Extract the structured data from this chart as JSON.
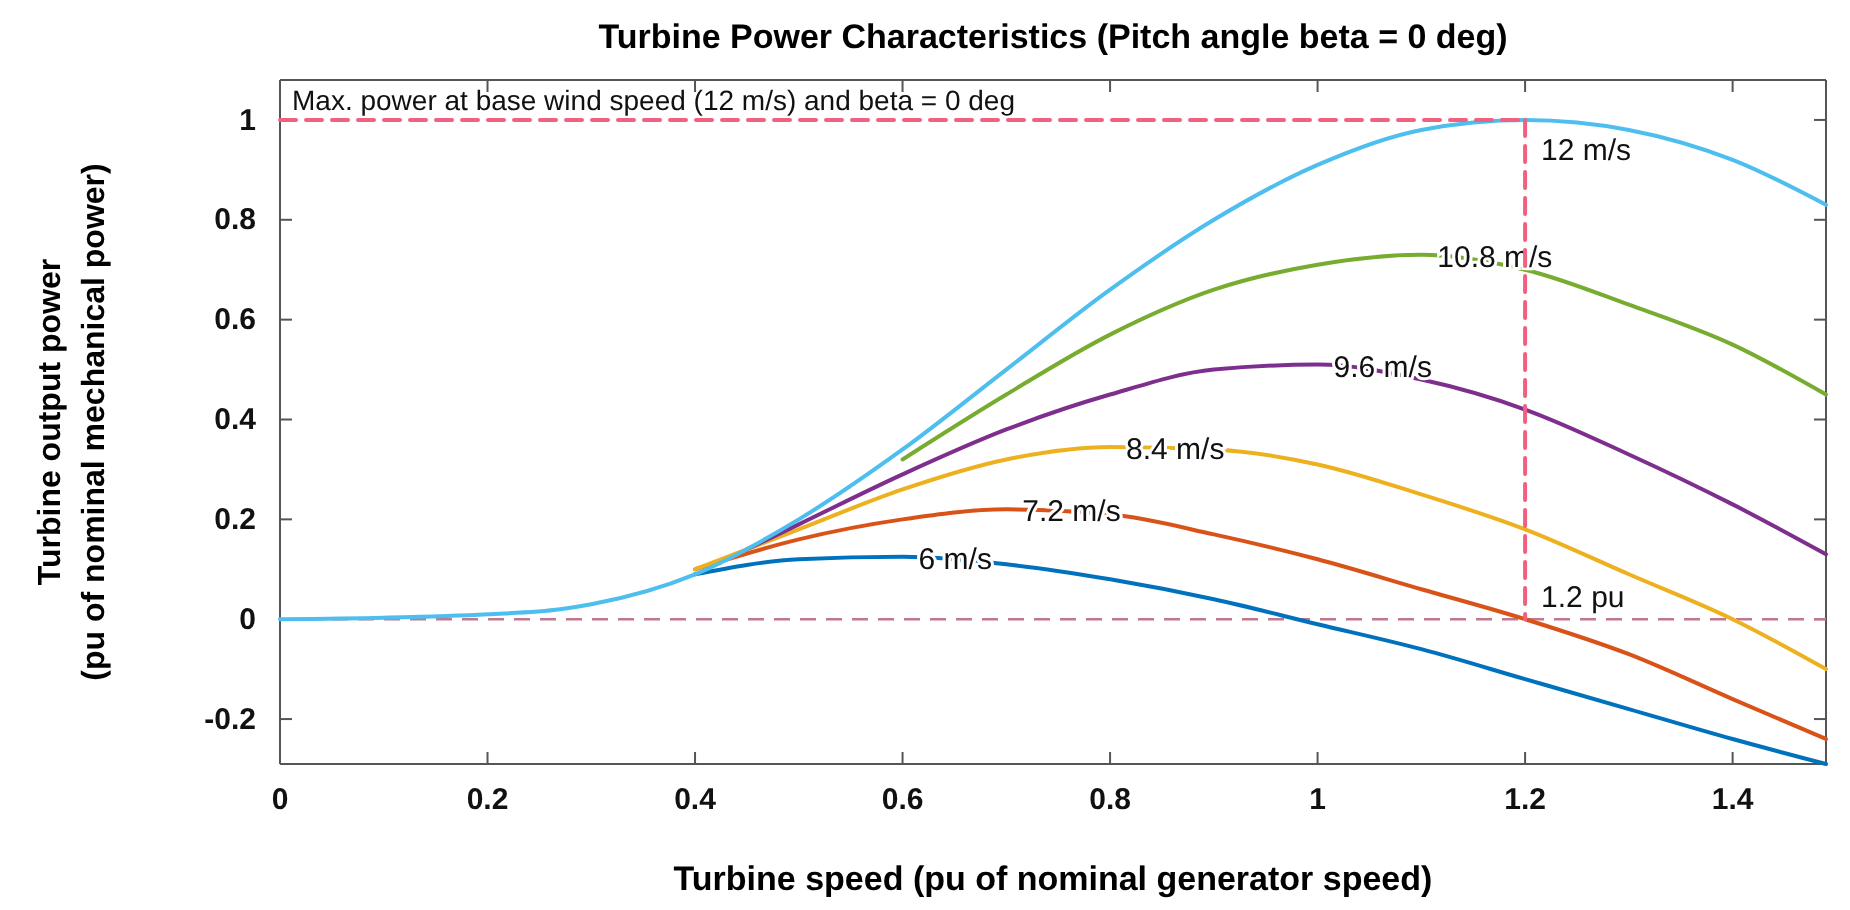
{
  "chart_data": {
    "type": "line",
    "title": "Turbine Power Characteristics (Pitch angle beta = 0 deg)",
    "xlabel": "Turbine speed (pu of nominal generator speed)",
    "ylabel": "Turbine output power\n(pu of nominal mechanical power)",
    "xlim": [
      0,
      1.49
    ],
    "ylim": [
      -0.29,
      1.08
    ],
    "xticks": [
      0,
      0.2,
      0.4,
      0.6,
      0.8,
      1,
      1.2,
      1.4
    ],
    "yticks": [
      -0.2,
      0,
      0.2,
      0.4,
      0.6,
      0.8,
      1
    ],
    "grid": false,
    "line_style": "solid",
    "series": [
      {
        "name": "6 m/s",
        "color": "#0072bd",
        "x": [
          0.4,
          0.5,
          0.6,
          0.7,
          0.8,
          0.9,
          1.0,
          1.1,
          1.2,
          1.3,
          1.4,
          1.49
        ],
        "values": [
          0.09,
          0.12,
          0.125,
          0.11,
          0.08,
          0.04,
          -0.01,
          -0.06,
          -0.12,
          -0.18,
          -0.24,
          -0.29
        ]
      },
      {
        "name": "7.2 m/s",
        "color": "#d95319",
        "x": [
          0.4,
          0.5,
          0.6,
          0.7,
          0.8,
          0.9,
          1.0,
          1.1,
          1.2,
          1.3,
          1.4,
          1.49
        ],
        "values": [
          0.1,
          0.16,
          0.2,
          0.22,
          0.21,
          0.17,
          0.12,
          0.06,
          0,
          -0.07,
          -0.16,
          -0.24
        ]
      },
      {
        "name": "8.4 m/s",
        "color": "#edb120",
        "x": [
          0.4,
          0.5,
          0.6,
          0.7,
          0.8,
          0.9,
          1.0,
          1.1,
          1.2,
          1.3,
          1.4,
          1.49
        ],
        "values": [
          0.1,
          0.18,
          0.26,
          0.32,
          0.345,
          0.34,
          0.31,
          0.25,
          0.18,
          0.09,
          0,
          -0.1
        ]
      },
      {
        "name": "9.6 m/s",
        "color": "#7e2f8e",
        "x": [
          0.45,
          0.5,
          0.6,
          0.7,
          0.8,
          0.9,
          1.0,
          1.1,
          1.2,
          1.3,
          1.4,
          1.49
        ],
        "values": [
          0.14,
          0.19,
          0.29,
          0.38,
          0.45,
          0.5,
          0.51,
          0.48,
          0.42,
          0.33,
          0.23,
          0.13
        ]
      },
      {
        "name": "10.8 m/s",
        "color": "#77ac30",
        "x": [
          0.6,
          0.7,
          0.8,
          0.9,
          1.0,
          1.1,
          1.2,
          1.3,
          1.4,
          1.49
        ],
        "values": [
          0.32,
          0.45,
          0.57,
          0.66,
          0.71,
          0.73,
          0.7,
          0.63,
          0.55,
          0.45
        ]
      },
      {
        "name": "12 m/s",
        "color": "#4dbeee",
        "x": [
          0,
          0.1,
          0.2,
          0.27,
          0.3,
          0.4,
          0.5,
          0.6,
          0.7,
          0.8,
          0.9,
          1.0,
          1.1,
          1.2,
          1.3,
          1.4,
          1.49
        ],
        "values": [
          0,
          0.003,
          0.01,
          0.02,
          0.03,
          0.09,
          0.2,
          0.34,
          0.5,
          0.66,
          0.8,
          0.91,
          0.98,
          1.0,
          0.98,
          0.92,
          0.83
        ]
      },
      {
        "type": "line",
        "color": "#f06080",
        "line_style": "dashed",
        "x": [
          0,
          1.2
        ],
        "values": [
          1,
          1
        ]
      },
      {
        "type": "line",
        "color": "#f06080",
        "line_style": "dashed",
        "x": [
          1.2,
          1.2
        ],
        "values": [
          1,
          0
        ]
      }
    ],
    "ref_lines": [
      {
        "axis": "y",
        "value": 0,
        "color": "#c07890",
        "line_style": "dashed"
      }
    ],
    "annotations": [
      "Max. power at base wind speed (12 m/s) and beta = 0 deg",
      {
        "text": "1.2 pu",
        "x": 1.2,
        "y": 0
      }
    ]
  }
}
